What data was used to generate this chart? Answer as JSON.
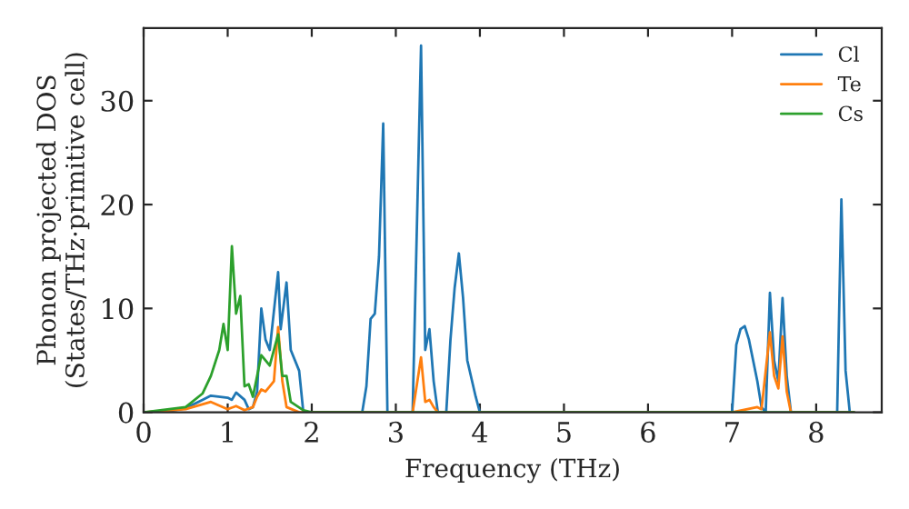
{
  "chart_data": {
    "type": "line",
    "xlabel": "Frequency (THz)",
    "ylabel": "Phonon projected DOS\n(States/THz·primitive cell)",
    "xlim": [
      0,
      8.78
    ],
    "ylim": [
      0,
      37
    ],
    "xticks": [
      0,
      1,
      2,
      3,
      4,
      5,
      6,
      7,
      8
    ],
    "yticks": [
      0,
      10,
      20,
      30
    ],
    "grid": false,
    "legend": "top right",
    "series": [
      {
        "name": "Cl",
        "color": "#1f77b4",
        "x": [
          0,
          0.3,
          0.5,
          0.7,
          0.8,
          1.0,
          1.05,
          1.1,
          1.2,
          1.25,
          1.3,
          1.35,
          1.4,
          1.45,
          1.5,
          1.6,
          1.63,
          1.7,
          1.75,
          1.85,
          1.9,
          2.6,
          2.65,
          2.7,
          2.75,
          2.8,
          2.85,
          2.9,
          3.2,
          3.3,
          3.35,
          3.4,
          3.45,
          3.5,
          3.6,
          3.65,
          3.7,
          3.75,
          3.8,
          3.85,
          3.95,
          4.0,
          7.0,
          7.05,
          7.1,
          7.15,
          7.2,
          7.3,
          7.35,
          7.4,
          7.45,
          7.5,
          7.55,
          7.6,
          7.65,
          7.7,
          8.25,
          8.3,
          8.35,
          8.4,
          8.45
        ],
        "values": [
          0,
          0.1,
          0.4,
          1.2,
          1.6,
          1.4,
          1.2,
          1.9,
          1.2,
          0.3,
          0.5,
          2,
          10,
          7,
          6,
          13.5,
          8,
          12.5,
          6,
          4,
          0,
          0,
          2.5,
          9,
          9.5,
          15,
          27.8,
          0,
          0,
          35.3,
          6,
          8,
          3,
          0,
          0,
          7,
          12,
          15.3,
          11,
          5,
          1.5,
          0,
          0,
          6.5,
          8,
          8.3,
          7,
          3,
          0.5,
          0,
          11.5,
          5,
          3,
          11,
          3.5,
          0,
          0,
          20.5,
          4,
          0,
          0
        ]
      },
      {
        "name": "Te",
        "color": "#ff7f0e",
        "x": [
          0,
          0.5,
          0.8,
          1.0,
          1.1,
          1.2,
          1.3,
          1.35,
          1.4,
          1.45,
          1.5,
          1.55,
          1.6,
          1.65,
          1.7,
          1.85,
          3.2,
          3.3,
          3.35,
          3.4,
          3.45,
          3.5,
          7.0,
          7.3,
          7.35,
          7.45,
          7.5,
          7.55,
          7.6,
          7.65,
          7.7,
          8.45
        ],
        "values": [
          0,
          0.3,
          1.0,
          0.3,
          0.6,
          0.2,
          0.5,
          1.5,
          2.2,
          2,
          2.5,
          3,
          8.2,
          3,
          0.5,
          0,
          0,
          5.3,
          1,
          1.2,
          0.5,
          0,
          0,
          0.5,
          0.3,
          7.7,
          3.5,
          2.3,
          7.3,
          2,
          0,
          0
        ]
      },
      {
        "name": "Cs",
        "color": "#2ca02c",
        "x": [
          0,
          0.5,
          0.7,
          0.8,
          0.9,
          0.95,
          1.0,
          1.05,
          1.1,
          1.15,
          1.2,
          1.25,
          1.3,
          1.4,
          1.5,
          1.6,
          1.65,
          1.7,
          1.75,
          1.9,
          2.0,
          8.45
        ],
        "values": [
          0,
          0.5,
          1.8,
          3.5,
          6,
          8.5,
          6,
          16,
          9.5,
          11.2,
          2.5,
          2.7,
          1.5,
          5.5,
          4.5,
          7.5,
          3.5,
          3.5,
          1,
          0.2,
          0,
          0
        ]
      }
    ]
  }
}
